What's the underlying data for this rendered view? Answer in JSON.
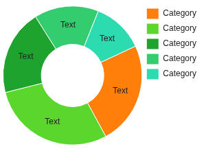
{
  "chart_data": {
    "type": "doughnut",
    "categories": [
      "Category",
      "Category",
      "Category",
      "Category",
      "Category"
    ],
    "values": [
      24,
      29,
      20,
      15,
      12
    ],
    "value_labels": [
      "Text",
      "Text",
      "Text",
      "Text",
      "Text"
    ],
    "colors": [
      "#ff7f0a",
      "#5ad62c",
      "#1fa32f",
      "#33cc6e",
      "#2ddbb0"
    ],
    "data_labels": true,
    "legend": "right"
  }
}
